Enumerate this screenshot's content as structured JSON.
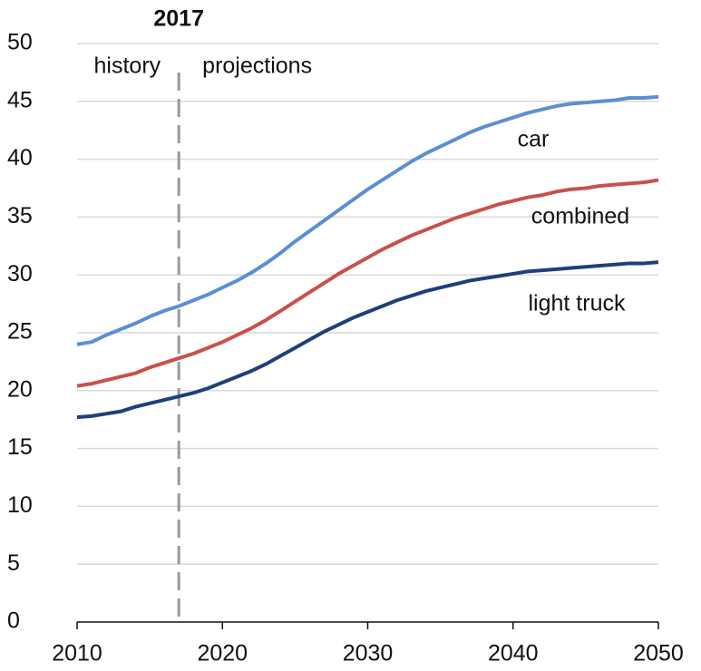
{
  "chart_data": {
    "type": "line",
    "x": [
      2010,
      2011,
      2012,
      2013,
      2014,
      2015,
      2016,
      2017,
      2018,
      2019,
      2020,
      2021,
      2022,
      2023,
      2024,
      2025,
      2026,
      2027,
      2028,
      2029,
      2030,
      2031,
      2032,
      2033,
      2034,
      2035,
      2036,
      2037,
      2038,
      2039,
      2040,
      2041,
      2042,
      2043,
      2044,
      2045,
      2046,
      2047,
      2048,
      2049,
      2050
    ],
    "series": [
      {
        "name": "car",
        "color": "#5b8fd4",
        "values": [
          24.0,
          24.2,
          24.8,
          25.3,
          25.8,
          26.4,
          26.9,
          27.3,
          27.8,
          28.3,
          28.9,
          29.5,
          30.2,
          31.0,
          31.9,
          32.9,
          33.8,
          34.7,
          35.6,
          36.5,
          37.4,
          38.2,
          39.0,
          39.8,
          40.5,
          41.1,
          41.7,
          42.3,
          42.8,
          43.2,
          43.6,
          44.0,
          44.3,
          44.6,
          44.8,
          44.9,
          45.0,
          45.1,
          45.3,
          45.3,
          45.4
        ]
      },
      {
        "name": "combined",
        "color": "#c9504a",
        "values": [
          20.4,
          20.6,
          20.9,
          21.2,
          21.5,
          22.0,
          22.4,
          22.8,
          23.2,
          23.7,
          24.2,
          24.8,
          25.4,
          26.1,
          26.9,
          27.7,
          28.5,
          29.3,
          30.1,
          30.8,
          31.5,
          32.2,
          32.8,
          33.4,
          33.9,
          34.4,
          34.9,
          35.3,
          35.7,
          36.1,
          36.4,
          36.7,
          36.9,
          37.2,
          37.4,
          37.5,
          37.7,
          37.8,
          37.9,
          38.0,
          38.2
        ]
      },
      {
        "name": "light truck",
        "color": "#1f3f7a",
        "values": [
          17.7,
          17.8,
          18.0,
          18.2,
          18.6,
          18.9,
          19.2,
          19.5,
          19.8,
          20.2,
          20.7,
          21.2,
          21.7,
          22.3,
          23.0,
          23.7,
          24.4,
          25.1,
          25.7,
          26.3,
          26.8,
          27.3,
          27.8,
          28.2,
          28.6,
          28.9,
          29.2,
          29.5,
          29.7,
          29.9,
          30.1,
          30.3,
          30.4,
          30.5,
          30.6,
          30.7,
          30.8,
          30.9,
          31.0,
          31.0,
          31.1
        ]
      }
    ],
    "divider": {
      "x": 2017,
      "label": "2017"
    },
    "annotations": [
      "history",
      "projections"
    ],
    "xlim": [
      2010,
      2050
    ],
    "xticks": [
      2010,
      2020,
      2030,
      2040,
      2050
    ],
    "ylim": [
      0,
      50
    ],
    "yticks": [
      0,
      5,
      10,
      15,
      20,
      25,
      30,
      35,
      40,
      45,
      50
    ],
    "grid": true
  }
}
